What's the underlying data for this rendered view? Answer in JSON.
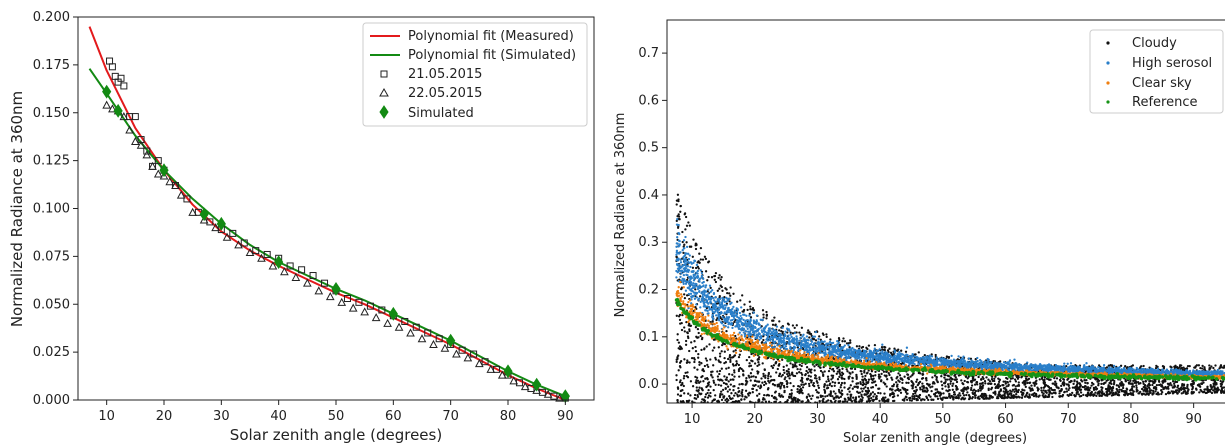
{
  "chart_data": [
    {
      "type": "scatter",
      "xlabel": "Solar zenith angle (degrees)",
      "ylabel": "Normalized Radiance at 360nm",
      "xlim": [
        5,
        95
      ],
      "ylim": [
        0,
        0.2
      ],
      "xticks": [
        "10",
        "20",
        "30",
        "40",
        "50",
        "60",
        "70",
        "80",
        "90"
      ],
      "yticks": [
        "0.000",
        "0.025",
        "0.050",
        "0.075",
        "0.100",
        "0.125",
        "0.150",
        "0.175",
        "0.200"
      ],
      "grid": false,
      "legend_position": "top-right",
      "series": [
        {
          "name": "Polynomial fit (Measured)",
          "kind": "line",
          "color": "#e31a1c",
          "x": [
            7,
            10,
            15,
            20,
            25,
            30,
            35,
            40,
            45,
            50,
            55,
            60,
            65,
            70,
            75,
            80,
            85,
            90
          ],
          "y": [
            0.195,
            0.172,
            0.142,
            0.12,
            0.102,
            0.088,
            0.078,
            0.07,
            0.063,
            0.056,
            0.05,
            0.043,
            0.036,
            0.029,
            0.021,
            0.013,
            0.006,
            0.0
          ]
        },
        {
          "name": "Polynomial fit (Simulated)",
          "kind": "line",
          "color": "#138a13",
          "x": [
            7,
            10,
            15,
            20,
            25,
            30,
            35,
            40,
            45,
            50,
            55,
            60,
            65,
            70,
            75,
            80,
            85,
            90
          ],
          "y": [
            0.173,
            0.16,
            0.138,
            0.12,
            0.105,
            0.092,
            0.081,
            0.072,
            0.065,
            0.058,
            0.052,
            0.045,
            0.038,
            0.031,
            0.023,
            0.015,
            0.008,
            0.002
          ]
        },
        {
          "name": "21.05.2015",
          "kind": "square",
          "color": "#222222",
          "x": [
            10.5,
            11,
            11.5,
            12,
            12.5,
            13,
            14,
            15,
            16,
            17,
            18,
            19,
            20,
            22,
            24,
            26,
            28,
            30,
            32,
            34,
            36,
            38,
            40,
            42,
            44,
            46,
            48,
            50,
            52,
            54,
            56,
            58,
            60,
            62,
            64,
            66,
            68,
            70,
            72,
            74,
            76,
            78,
            80,
            82,
            84,
            86,
            88,
            90
          ],
          "y": [
            0.177,
            0.174,
            0.169,
            0.166,
            0.168,
            0.164,
            0.148,
            0.148,
            0.136,
            0.13,
            0.122,
            0.125,
            0.12,
            0.112,
            0.105,
            0.098,
            0.093,
            0.089,
            0.087,
            0.082,
            0.078,
            0.076,
            0.074,
            0.07,
            0.068,
            0.065,
            0.061,
            0.057,
            0.053,
            0.051,
            0.049,
            0.047,
            0.044,
            0.041,
            0.038,
            0.035,
            0.032,
            0.029,
            0.026,
            0.024,
            0.02,
            0.016,
            0.013,
            0.009,
            0.006,
            0.004,
            0.002,
            0.001
          ]
        },
        {
          "name": "22.05.2015",
          "kind": "triangle",
          "color": "#222222",
          "x": [
            10,
            11,
            12,
            13,
            14,
            15,
            16,
            17,
            18,
            19,
            20,
            21,
            22,
            23,
            25,
            27,
            29,
            31,
            33,
            35,
            37,
            39,
            41,
            43,
            45,
            47,
            49,
            51,
            53,
            55,
            57,
            59,
            61,
            63,
            65,
            67,
            69,
            71,
            73,
            75,
            77,
            79,
            81,
            83,
            85,
            87,
            89
          ],
          "y": [
            0.154,
            0.152,
            0.151,
            0.148,
            0.141,
            0.135,
            0.133,
            0.128,
            0.122,
            0.118,
            0.117,
            0.114,
            0.112,
            0.107,
            0.098,
            0.094,
            0.09,
            0.085,
            0.081,
            0.077,
            0.074,
            0.07,
            0.067,
            0.064,
            0.061,
            0.057,
            0.054,
            0.051,
            0.048,
            0.046,
            0.043,
            0.04,
            0.038,
            0.035,
            0.032,
            0.029,
            0.027,
            0.024,
            0.022,
            0.019,
            0.016,
            0.013,
            0.01,
            0.007,
            0.005,
            0.003,
            0.001
          ]
        },
        {
          "name": "Simulated",
          "kind": "diamond",
          "color": "#138a13",
          "x": [
            10,
            12,
            20,
            27,
            30,
            40,
            50,
            60,
            70,
            80,
            85,
            90
          ],
          "y": [
            0.161,
            0.151,
            0.12,
            0.097,
            0.092,
            0.072,
            0.058,
            0.045,
            0.031,
            0.015,
            0.008,
            0.002
          ]
        }
      ]
    },
    {
      "type": "scatter",
      "xlabel": "Solar zenith angle (degrees)",
      "ylabel": "Normalized Radiance at 360nm",
      "xlim": [
        6,
        95
      ],
      "ylim": [
        -0.04,
        0.77
      ],
      "xticks": [
        "10",
        "20",
        "30",
        "40",
        "50",
        "60",
        "70",
        "80",
        "90"
      ],
      "yticks": [
        "0.0",
        "0.1",
        "0.2",
        "0.3",
        "0.4",
        "0.5",
        "0.6",
        "0.7"
      ],
      "grid": false,
      "legend_position": "top-right",
      "series": [
        {
          "name": "Cloudy",
          "color": "#111111",
          "spread_type": "cloudy",
          "count": 3600
        },
        {
          "name": "High serosol",
          "color": "#2a7fc9",
          "spread_type": "aerosol",
          "count": 3000
        },
        {
          "name": "Clear sky",
          "color": "#f07f10",
          "spread_type": "clear",
          "count": 2200
        },
        {
          "name": "Reference",
          "color": "#169316",
          "spread_type": "reference",
          "count": 500
        }
      ]
    }
  ]
}
